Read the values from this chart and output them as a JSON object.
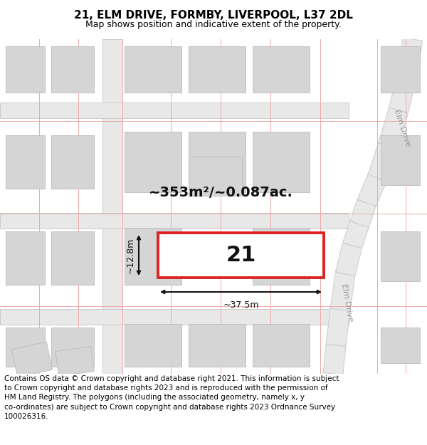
{
  "title": "21, ELM DRIVE, FORMBY, LIVERPOOL, L37 2DL",
  "subtitle": "Map shows position and indicative extent of the property.",
  "footer": "Contains OS data © Crown copyright and database right 2021. This information is subject to Crown copyright and database rights 2023 and is reproduced with the permission of HM Land Registry. The polygons (including the associated geometry, namely x, y co-ordinates) are subject to Crown copyright and database rights 2023 Ordnance Survey 100026316.",
  "background_color": "#ffffff",
  "map_bg": "#f8f8f8",
  "road_fill": "#e8e8e8",
  "road_edge": "#cccccc",
  "cadastral_color": "#f0aaaa",
  "building_fill": "#d5d5d5",
  "building_edge": "#bbbbbb",
  "plot_fill": "#ffffff",
  "plot_edge": "#dd2222",
  "dim_color": "#111111",
  "road_label_color": "#999999",
  "area_text": "~353m²/~0.087ac.",
  "plot_number": "21",
  "width_label": "~37.5m",
  "height_label": "~12.8m",
  "road_name": "Elm Drive",
  "title_fontsize": 11,
  "subtitle_fontsize": 9,
  "footer_fontsize": 7.5,
  "area_fontsize": 14,
  "plot_num_fontsize": 22,
  "dim_fontsize": 9,
  "road_label_fontsize": 8,
  "figwidth": 6.0,
  "figheight": 6.25,
  "dpi": 100
}
